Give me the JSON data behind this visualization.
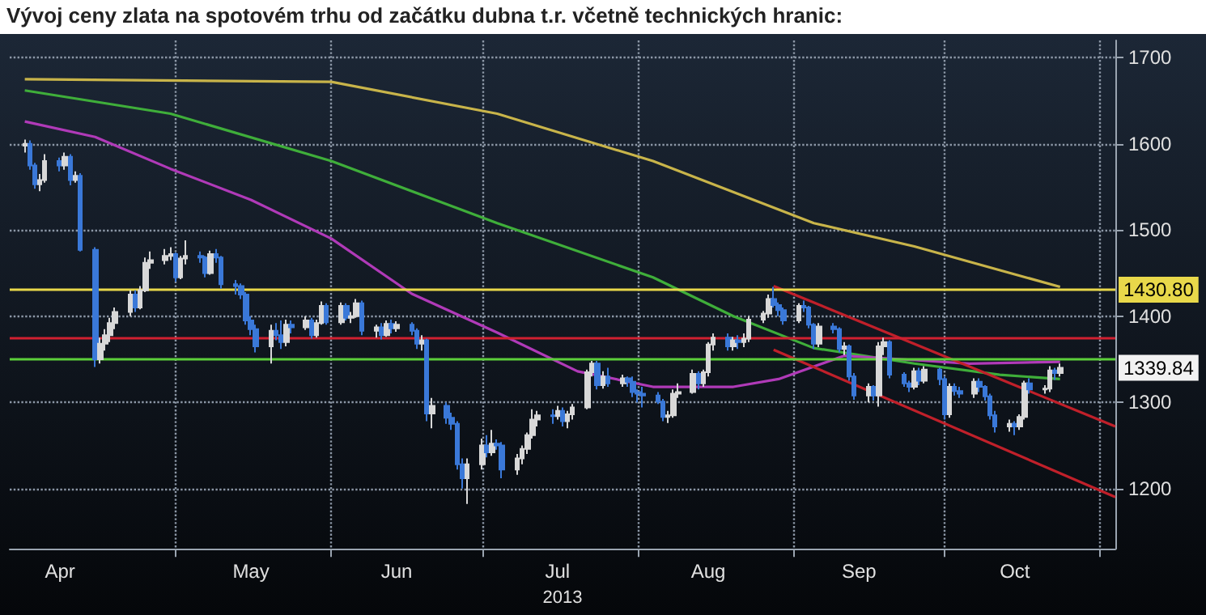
{
  "chart_data": {
    "type": "candlestick",
    "title": "Vývoj ceny zlata na spotovém trhu od začátku dubna t.r. včetně technických hranic:",
    "xlabel": "2013",
    "x": [
      "2013-04-01",
      "2013-04-02",
      "2013-04-03",
      "2013-04-04",
      "2013-04-05",
      "2013-04-08",
      "2013-04-09",
      "2013-04-10",
      "2013-04-11",
      "2013-04-12",
      "2013-04-15",
      "2013-04-16",
      "2013-04-17",
      "2013-04-18",
      "2013-04-19",
      "2013-04-22",
      "2013-04-23",
      "2013-04-24",
      "2013-04-25",
      "2013-04-26",
      "2013-04-29",
      "2013-04-30",
      "2013-05-01",
      "2013-05-02",
      "2013-05-03",
      "2013-05-06",
      "2013-05-07",
      "2013-05-08",
      "2013-05-09",
      "2013-05-10",
      "2013-05-13",
      "2013-05-14",
      "2013-05-15",
      "2013-05-16",
      "2013-05-17",
      "2013-05-20",
      "2013-05-21",
      "2013-05-22",
      "2013-05-23",
      "2013-05-24",
      "2013-05-27",
      "2013-05-28",
      "2013-05-29",
      "2013-05-30",
      "2013-05-31",
      "2013-06-03",
      "2013-06-04",
      "2013-06-05",
      "2013-06-06",
      "2013-06-07",
      "2013-06-10",
      "2013-06-11",
      "2013-06-12",
      "2013-06-13",
      "2013-06-14",
      "2013-06-17",
      "2013-06-18",
      "2013-06-19",
      "2013-06-20",
      "2013-06-21",
      "2013-06-24",
      "2013-06-25",
      "2013-06-26",
      "2013-06-27",
      "2013-06-28",
      "2013-07-01",
      "2013-07-02",
      "2013-07-03",
      "2013-07-04",
      "2013-07-05",
      "2013-07-08",
      "2013-07-09",
      "2013-07-10",
      "2013-07-11",
      "2013-07-12",
      "2013-07-15",
      "2013-07-16",
      "2013-07-17",
      "2013-07-18",
      "2013-07-19",
      "2013-07-22",
      "2013-07-23",
      "2013-07-24",
      "2013-07-25",
      "2013-07-26",
      "2013-07-29",
      "2013-07-30",
      "2013-07-31",
      "2013-08-01",
      "2013-08-02",
      "2013-08-05",
      "2013-08-06",
      "2013-08-07",
      "2013-08-08",
      "2013-08-09",
      "2013-08-12",
      "2013-08-13",
      "2013-08-14",
      "2013-08-15",
      "2013-08-16",
      "2013-08-19",
      "2013-08-20",
      "2013-08-21",
      "2013-08-22",
      "2013-08-23",
      "2013-08-26",
      "2013-08-27",
      "2013-08-28",
      "2013-08-29",
      "2013-08-30",
      "2013-09-02",
      "2013-09-03",
      "2013-09-04",
      "2013-09-05",
      "2013-09-06",
      "2013-09-09",
      "2013-09-10",
      "2013-09-11",
      "2013-09-12",
      "2013-09-13",
      "2013-09-16",
      "2013-09-17",
      "2013-09-18",
      "2013-09-19",
      "2013-09-20",
      "2013-09-23",
      "2013-09-24",
      "2013-09-25",
      "2013-09-26",
      "2013-09-27",
      "2013-09-30",
      "2013-10-01",
      "2013-10-02",
      "2013-10-03",
      "2013-10-04",
      "2013-10-07",
      "2013-10-08",
      "2013-10-09",
      "2013-10-10",
      "2013-10-11",
      "2013-10-14",
      "2013-10-15",
      "2013-10-16",
      "2013-10-17",
      "2013-10-18",
      "2013-10-21",
      "2013-10-22",
      "2013-10-23",
      "2013-10-24"
    ],
    "ohlc": [
      [
        1598,
        1605,
        1590,
        1600
      ],
      [
        1600,
        1604,
        1570,
        1575
      ],
      [
        1575,
        1578,
        1548,
        1553
      ],
      [
        1553,
        1565,
        1545,
        1558
      ],
      [
        1558,
        1588,
        1555,
        1580
      ],
      [
        1580,
        1584,
        1568,
        1575
      ],
      [
        1575,
        1590,
        1570,
        1585
      ],
      [
        1585,
        1588,
        1552,
        1558
      ],
      [
        1558,
        1568,
        1555,
        1563
      ],
      [
        1563,
        1566,
        1475,
        1477
      ],
      [
        1477,
        1480,
        1341,
        1350
      ],
      [
        1350,
        1375,
        1345,
        1368
      ],
      [
        1368,
        1385,
        1360,
        1378
      ],
      [
        1378,
        1398,
        1370,
        1392
      ],
      [
        1392,
        1410,
        1385,
        1405
      ],
      [
        1405,
        1430,
        1400,
        1425
      ],
      [
        1425,
        1430,
        1405,
        1410
      ],
      [
        1410,
        1435,
        1408,
        1430
      ],
      [
        1430,
        1468,
        1428,
        1462
      ],
      [
        1462,
        1475,
        1455,
        1465
      ],
      [
        1465,
        1478,
        1460,
        1470
      ],
      [
        1470,
        1480,
        1465,
        1472
      ],
      [
        1472,
        1474,
        1440,
        1445
      ],
      [
        1445,
        1470,
        1443,
        1467
      ],
      [
        1467,
        1488,
        1460,
        1470
      ],
      [
        1470,
        1475,
        1462,
        1468
      ],
      [
        1468,
        1470,
        1445,
        1450
      ],
      [
        1450,
        1476,
        1448,
        1472
      ],
      [
        1472,
        1478,
        1462,
        1468
      ],
      [
        1468,
        1470,
        1432,
        1437
      ],
      [
        1437,
        1442,
        1425,
        1435
      ],
      [
        1435,
        1438,
        1420,
        1425
      ],
      [
        1425,
        1428,
        1390,
        1395
      ],
      [
        1395,
        1400,
        1378,
        1385
      ],
      [
        1385,
        1390,
        1358,
        1365
      ],
      [
        1365,
        1390,
        1345,
        1383
      ],
      [
        1383,
        1392,
        1372,
        1378
      ],
      [
        1378,
        1395,
        1362,
        1370
      ],
      [
        1370,
        1396,
        1365,
        1390
      ],
      [
        1390,
        1395,
        1380,
        1387
      ],
      [
        1387,
        1400,
        1384,
        1395
      ],
      [
        1395,
        1398,
        1374,
        1378
      ],
      [
        1378,
        1396,
        1375,
        1392
      ],
      [
        1392,
        1417,
        1390,
        1412
      ],
      [
        1412,
        1415,
        1390,
        1393
      ],
      [
        1393,
        1416,
        1390,
        1412
      ],
      [
        1412,
        1415,
        1395,
        1398
      ],
      [
        1398,
        1405,
        1392,
        1400
      ],
      [
        1400,
        1420,
        1398,
        1415
      ],
      [
        1415,
        1418,
        1378,
        1383
      ],
      [
        1383,
        1390,
        1375,
        1387
      ],
      [
        1387,
        1392,
        1373,
        1378
      ],
      [
        1378,
        1395,
        1376,
        1391
      ],
      [
        1391,
        1396,
        1380,
        1386
      ],
      [
        1386,
        1394,
        1382,
        1390
      ],
      [
        1390,
        1393,
        1378,
        1383
      ],
      [
        1383,
        1386,
        1362,
        1368
      ],
      [
        1368,
        1378,
        1360,
        1372
      ],
      [
        1372,
        1374,
        1278,
        1287
      ],
      [
        1287,
        1305,
        1270,
        1296
      ],
      [
        1296,
        1300,
        1275,
        1282
      ],
      [
        1282,
        1288,
        1268,
        1275
      ],
      [
        1275,
        1278,
        1222,
        1228
      ],
      [
        1228,
        1235,
        1200,
        1212
      ],
      [
        1212,
        1235,
        1182,
        1228
      ],
      [
        1228,
        1258,
        1222,
        1250
      ],
      [
        1250,
        1262,
        1236,
        1242
      ],
      [
        1242,
        1268,
        1238,
        1252
      ],
      [
        1252,
        1257,
        1245,
        1250
      ],
      [
        1250,
        1254,
        1212,
        1222
      ],
      [
        1222,
        1240,
        1216,
        1235
      ],
      [
        1235,
        1250,
        1228,
        1246
      ],
      [
        1246,
        1265,
        1240,
        1262
      ],
      [
        1262,
        1292,
        1258,
        1280
      ],
      [
        1280,
        1290,
        1272,
        1285
      ],
      [
        1285,
        1292,
        1275,
        1284
      ],
      [
        1284,
        1296,
        1280,
        1290
      ],
      [
        1290,
        1294,
        1272,
        1278
      ],
      [
        1278,
        1290,
        1270,
        1286
      ],
      [
        1286,
        1298,
        1280,
        1294
      ],
      [
        1294,
        1338,
        1292,
        1335
      ],
      [
        1335,
        1348,
        1330,
        1345
      ],
      [
        1345,
        1348,
        1315,
        1320
      ],
      [
        1320,
        1336,
        1316,
        1330
      ],
      [
        1330,
        1340,
        1318,
        1322
      ],
      [
        1322,
        1332,
        1318,
        1328
      ],
      [
        1328,
        1330,
        1318,
        1324
      ],
      [
        1324,
        1330,
        1306,
        1312
      ],
      [
        1312,
        1315,
        1300,
        1310
      ],
      [
        1310,
        1318,
        1294,
        1308
      ],
      [
        1308,
        1312,
        1298,
        1301
      ],
      [
        1301,
        1304,
        1278,
        1283
      ],
      [
        1283,
        1290,
        1276,
        1285
      ],
      [
        1285,
        1315,
        1282,
        1310
      ],
      [
        1310,
        1322,
        1305,
        1312
      ],
      [
        1312,
        1338,
        1310,
        1333
      ],
      [
        1333,
        1336,
        1315,
        1322
      ],
      [
        1322,
        1338,
        1318,
        1335
      ],
      [
        1335,
        1370,
        1330,
        1367
      ],
      [
        1367,
        1380,
        1360,
        1375
      ],
      [
        1375,
        1380,
        1360,
        1365
      ],
      [
        1365,
        1376,
        1360,
        1372
      ],
      [
        1372,
        1378,
        1362,
        1370
      ],
      [
        1370,
        1380,
        1364,
        1374
      ],
      [
        1374,
        1400,
        1370,
        1396
      ],
      [
        1396,
        1406,
        1392,
        1403
      ],
      [
        1403,
        1425,
        1398,
        1420
      ],
      [
        1420,
        1434,
        1410,
        1413
      ],
      [
        1413,
        1416,
        1400,
        1407
      ],
      [
        1407,
        1410,
        1390,
        1395
      ],
      [
        1395,
        1415,
        1392,
        1412
      ],
      [
        1412,
        1418,
        1405,
        1410
      ],
      [
        1410,
        1412,
        1386,
        1390
      ],
      [
        1390,
        1392,
        1362,
        1368
      ],
      [
        1368,
        1392,
        1364,
        1388
      ],
      [
        1388,
        1392,
        1380,
        1385
      ],
      [
        1385,
        1387,
        1358,
        1362
      ],
      [
        1362,
        1370,
        1355,
        1365
      ],
      [
        1365,
        1367,
        1325,
        1330
      ],
      [
        1330,
        1334,
        1303,
        1308
      ],
      [
        1308,
        1322,
        1300,
        1318
      ],
      [
        1318,
        1320,
        1302,
        1308
      ],
      [
        1308,
        1370,
        1295,
        1365
      ],
      [
        1365,
        1375,
        1355,
        1370
      ],
      [
        1370,
        1372,
        1328,
        1332
      ],
      [
        1332,
        1335,
        1318,
        1322
      ],
      [
        1322,
        1325,
        1312,
        1318
      ],
      [
        1318,
        1340,
        1315,
        1336
      ],
      [
        1336,
        1340,
        1320,
        1325
      ],
      [
        1325,
        1342,
        1322,
        1338
      ],
      [
        1338,
        1340,
        1320,
        1327
      ],
      [
        1327,
        1330,
        1280,
        1286
      ],
      [
        1286,
        1322,
        1282,
        1318
      ],
      [
        1318,
        1322,
        1308,
        1313
      ],
      [
        1313,
        1318,
        1305,
        1310
      ],
      [
        1310,
        1328,
        1305,
        1324
      ],
      [
        1324,
        1328,
        1312,
        1318
      ],
      [
        1318,
        1320,
        1302,
        1307
      ],
      [
        1307,
        1310,
        1280,
        1285
      ],
      [
        1285,
        1290,
        1265,
        1272
      ],
      [
        1272,
        1280,
        1266,
        1275
      ],
      [
        1275,
        1278,
        1262,
        1272
      ],
      [
        1272,
        1286,
        1268,
        1283
      ],
      [
        1283,
        1325,
        1280,
        1322
      ],
      [
        1322,
        1328,
        1310,
        1315
      ],
      [
        1315,
        1320,
        1310,
        1316
      ],
      [
        1316,
        1342,
        1312,
        1337
      ],
      [
        1337,
        1340,
        1326,
        1334
      ],
      [
        1334,
        1345,
        1330,
        1340
      ]
    ],
    "series": [
      {
        "type": "line",
        "color": "#c8b44a",
        "x": [
          "2013-04-01",
          "2013-06-01",
          "2013-07-04",
          "2013-08-04",
          "2013-09-05",
          "2013-09-25",
          "2013-10-24"
        ],
        "values": [
          1675,
          1672,
          1635,
          1580,
          1508,
          1481,
          1434
        ]
      },
      {
        "type": "line",
        "color": "#3fae3a",
        "x": [
          "2013-04-01",
          "2013-04-30",
          "2013-06-01",
          "2013-07-04",
          "2013-08-04",
          "2013-08-20",
          "2013-09-05",
          "2013-09-25",
          "2013-10-12",
          "2013-10-24"
        ],
        "values": [
          1662,
          1635,
          1580,
          1508,
          1445,
          1400,
          1363,
          1345,
          1332,
          1327
        ]
      },
      {
        "type": "line",
        "color": "#b03ab8",
        "x": [
          "2013-04-01",
          "2013-04-15",
          "2013-04-30",
          "2013-05-16",
          "2013-06-01",
          "2013-06-17",
          "2013-07-04",
          "2013-07-20",
          "2013-08-04",
          "2013-08-20",
          "2013-08-29",
          "2013-09-11",
          "2013-09-25",
          "2013-10-06",
          "2013-10-24"
        ],
        "values": [
          1626,
          1608,
          1571,
          1535,
          1490,
          1426,
          1381,
          1336,
          1318,
          1318,
          1327,
          1354,
          1349,
          1345,
          1347
        ]
      },
      {
        "type": "line",
        "color": "#c0202a",
        "x": [
          "2013-08-28",
          "2013-11-04"
        ],
        "values": [
          1435,
          1272
        ]
      },
      {
        "type": "line",
        "color": "#c0202a",
        "x": [
          "2013-08-28",
          "2013-11-04"
        ],
        "values": [
          1361,
          1190
        ]
      }
    ],
    "xlim": [
      "2013-03-29",
      "2013-11-04"
    ],
    "xticks": [
      {
        "value": "2013-04-08",
        "label": "Apr"
      },
      {
        "value": "2013-05-01",
        "label": null
      },
      {
        "value": "2013-05-16",
        "label": "May"
      },
      {
        "value": "2013-06-01",
        "label": null
      },
      {
        "value": "2013-06-14",
        "label": "Jun"
      },
      {
        "value": "2013-07-01",
        "label": null
      },
      {
        "value": "2013-07-16",
        "label": "Jul"
      },
      {
        "value": "2013-08-01",
        "label": null
      },
      {
        "value": "2013-08-15",
        "label": "Aug"
      },
      {
        "value": "2013-09-01",
        "label": null
      },
      {
        "value": "2013-09-14",
        "label": "Sep"
      },
      {
        "value": "2013-10-01",
        "label": null
      },
      {
        "value": "2013-10-15",
        "label": "Oct"
      },
      {
        "value": "2013-11-01",
        "label": null
      }
    ],
    "ylim": [
      1130,
      1720
    ],
    "yticks": [
      1200,
      1300,
      1400,
      1500,
      1600,
      1700
    ],
    "grid": true,
    "ref_lines": [
      {
        "axis": "y",
        "value": 1430.8,
        "label": "1430.80",
        "color": "#e8d84a"
      },
      {
        "axis": "y",
        "value": 1375,
        "color": "#d02030"
      },
      {
        "axis": "y",
        "value": 1350,
        "color": "#5ccf3a"
      }
    ],
    "annotations": [
      "1339.84"
    ]
  }
}
